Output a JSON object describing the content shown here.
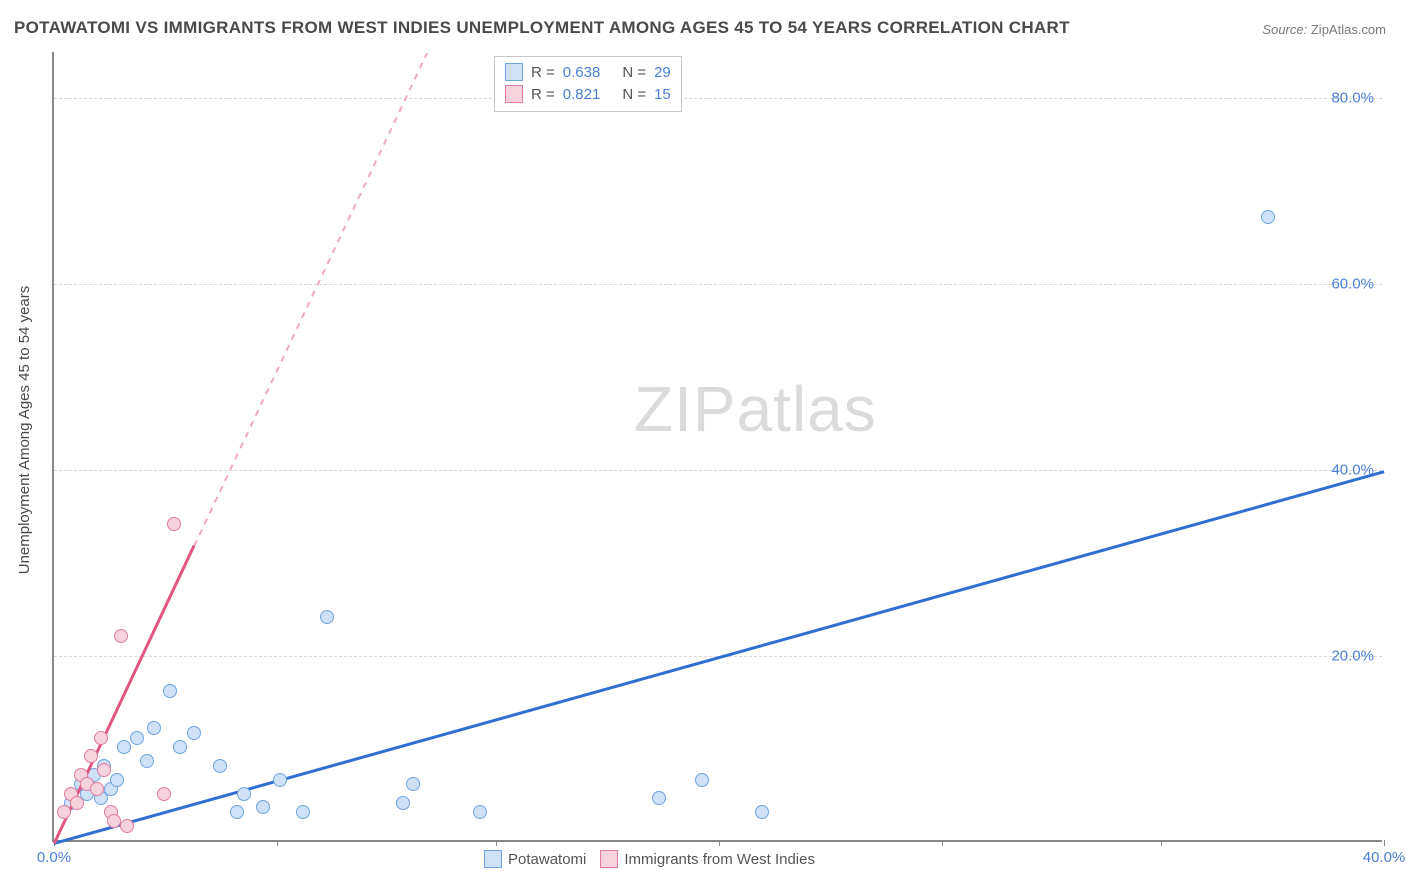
{
  "title": "POTAWATOMI VS IMMIGRANTS FROM WEST INDIES UNEMPLOYMENT AMONG AGES 45 TO 54 YEARS CORRELATION CHART",
  "source_label": "Source:",
  "source_value": "ZipAtlas.com",
  "ylabel": "Unemployment Among Ages 45 to 54 years",
  "watermark_a": "ZIP",
  "watermark_b": "atlas",
  "chart": {
    "type": "scatter",
    "xlim": [
      0,
      40
    ],
    "ylim": [
      0,
      85
    ],
    "xtick_positions": [
      0,
      6.7,
      13.3,
      20,
      26.7,
      33.3,
      40
    ],
    "xtick_labels": [
      "0.0%",
      "",
      "",
      "",
      "",
      "",
      "40.0%"
    ],
    "ytick_positions": [
      20,
      40,
      60,
      80
    ],
    "ytick_labels": [
      "20.0%",
      "40.0%",
      "60.0%",
      "80.0%"
    ],
    "grid_color": "#d8d8d8",
    "background_color": "#ffffff",
    "series": [
      {
        "name": "Potawatomi",
        "color_fill": "#cfe1f7",
        "color_stroke": "#6fa3e0",
        "marker_size": 14,
        "r_label": "R =",
        "r_value": "0.638",
        "n_label": "N =",
        "n_value": "29",
        "trend": {
          "x1": 0,
          "y1": 0,
          "x2": 40,
          "y2": 40,
          "color": "#2f6fd1",
          "width": 2.5,
          "dash": false
        },
        "points": [
          [
            0.5,
            4
          ],
          [
            0.8,
            6
          ],
          [
            1.0,
            5
          ],
          [
            1.2,
            7
          ],
          [
            1.4,
            4.5
          ],
          [
            1.5,
            8
          ],
          [
            1.7,
            5.5
          ],
          [
            1.9,
            6.5
          ],
          [
            2.1,
            10
          ],
          [
            2.5,
            11
          ],
          [
            2.8,
            8.5
          ],
          [
            3.0,
            12
          ],
          [
            3.5,
            16
          ],
          [
            3.8,
            10
          ],
          [
            4.2,
            11.5
          ],
          [
            5.0,
            8
          ],
          [
            5.5,
            3
          ],
          [
            5.7,
            5
          ],
          [
            6.3,
            3.5
          ],
          [
            6.8,
            6.5
          ],
          [
            7.5,
            3
          ],
          [
            8.2,
            24
          ],
          [
            10.5,
            4
          ],
          [
            10.8,
            6
          ],
          [
            12.8,
            3
          ],
          [
            18.2,
            4.5
          ],
          [
            19.5,
            6.5
          ],
          [
            21.3,
            3
          ],
          [
            36.5,
            67
          ]
        ]
      },
      {
        "name": "Immigrants from West Indies",
        "color_fill": "#f6d3dc",
        "color_stroke": "#e07ba0",
        "marker_size": 14,
        "r_label": "R =",
        "r_value": "0.821",
        "n_label": "N =",
        "n_value": "15",
        "trend_solid": {
          "x1": 0,
          "y1": 0,
          "x2": 4.2,
          "y2": 32,
          "color": "#e0567e",
          "width": 2.5
        },
        "trend_dash": {
          "x1": 4.2,
          "y1": 32,
          "x2": 11.2,
          "y2": 85,
          "color": "#f0a8bc",
          "width": 1.5
        },
        "points": [
          [
            0.3,
            3
          ],
          [
            0.5,
            5
          ],
          [
            0.7,
            4
          ],
          [
            0.8,
            7
          ],
          [
            1.0,
            6
          ],
          [
            1.1,
            9
          ],
          [
            1.3,
            5.5
          ],
          [
            1.4,
            11
          ],
          [
            1.5,
            7.5
          ],
          [
            1.7,
            3
          ],
          [
            1.8,
            2
          ],
          [
            2.0,
            22
          ],
          [
            2.2,
            1.5
          ],
          [
            3.3,
            5
          ],
          [
            3.6,
            34
          ]
        ]
      }
    ]
  },
  "legend_bottom": [
    {
      "label": "Potawatomi",
      "fill": "#cfe1f7",
      "stroke": "#6fa3e0"
    },
    {
      "label": "Immigrants from West Indies",
      "fill": "#f6d3dc",
      "stroke": "#e07ba0"
    }
  ]
}
